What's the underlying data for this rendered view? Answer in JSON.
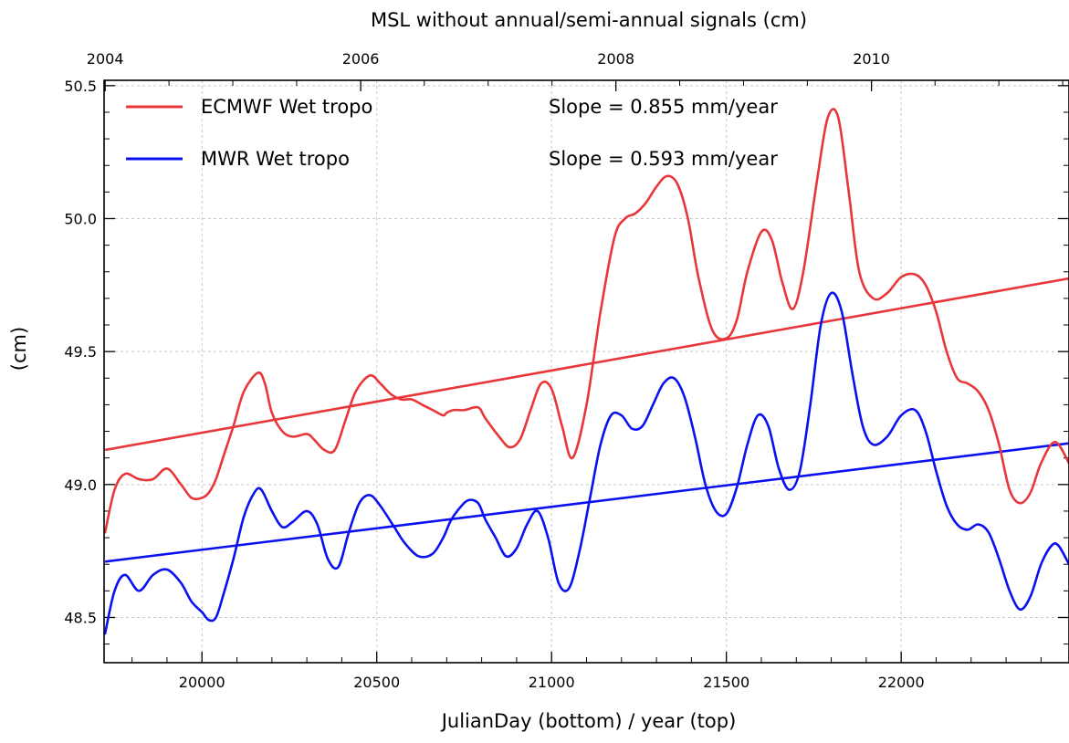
{
  "chart_data": {
    "type": "line",
    "title": "MSL without annual/semi-annual signals (cm)",
    "xlabel": "JulianDay (bottom) / year (top)",
    "ylabel": "(cm)",
    "xlim": [
      19720,
      22480
    ],
    "ylim": [
      48.33,
      50.52
    ],
    "grid": true,
    "legend_position": "top-left",
    "x_ticks": [
      20000,
      20500,
      21000,
      21500,
      22000
    ],
    "x_tick_labels": [
      "20000",
      "20500",
      "21000",
      "21500",
      "22000"
    ],
    "y_ticks": [
      48.5,
      49.0,
      49.5,
      50.0,
      50.5
    ],
    "y_tick_labels": [
      "48.5",
      "49.0",
      "49.5",
      "50.0",
      "50.5"
    ],
    "top_ticks": [
      19723,
      20454,
      21184,
      21915
    ],
    "top_tick_labels": [
      "2004",
      "2006",
      "2008",
      "2010"
    ],
    "series": [
      {
        "name": "ECMWF Wet tropo",
        "color": "#e8373a",
        "x": [
          19723,
          19750,
          19780,
          19820,
          19860,
          19900,
          19940,
          19970,
          20000,
          20020,
          20040,
          20060,
          20090,
          20120,
          20160,
          20180,
          20200,
          20230,
          20260,
          20300,
          20320,
          20350,
          20380,
          20410,
          20440,
          20480,
          20510,
          20540,
          20570,
          20600,
          20630,
          20660,
          20690,
          20700,
          20720,
          20750,
          20790,
          20810,
          20850,
          20880,
          20910,
          20940,
          20970,
          21000,
          21030,
          21060,
          21100,
          21140,
          21180,
          21210,
          21240,
          21270,
          21300,
          21330,
          21360,
          21390,
          21420,
          21460,
          21500,
          21530,
          21560,
          21600,
          21630,
          21660,
          21690,
          21720,
          21760,
          21790,
          21820,
          21850,
          21880,
          21920,
          21960,
          22000,
          22040,
          22070,
          22100,
          22130,
          22160,
          22190,
          22220,
          22250,
          22280,
          22310,
          22340,
          22370,
          22400,
          22440,
          22480
        ],
        "values": [
          48.82,
          48.98,
          49.04,
          49.02,
          49.02,
          49.06,
          49.0,
          48.95,
          48.95,
          48.97,
          49.02,
          49.1,
          49.22,
          49.35,
          49.42,
          49.38,
          49.27,
          49.2,
          49.18,
          49.19,
          49.17,
          49.13,
          49.13,
          49.24,
          49.35,
          49.41,
          49.38,
          49.34,
          49.32,
          49.32,
          49.3,
          49.28,
          49.26,
          49.27,
          49.28,
          49.28,
          49.29,
          49.25,
          49.18,
          49.14,
          49.17,
          49.28,
          49.38,
          49.36,
          49.22,
          49.1,
          49.3,
          49.65,
          49.93,
          50.0,
          50.02,
          50.06,
          50.12,
          50.16,
          50.13,
          50.0,
          49.78,
          49.58,
          49.55,
          49.62,
          49.8,
          49.95,
          49.92,
          49.76,
          49.66,
          49.8,
          50.15,
          50.38,
          50.38,
          50.1,
          49.8,
          49.7,
          49.72,
          49.78,
          49.79,
          49.75,
          49.65,
          49.5,
          49.4,
          49.38,
          49.35,
          49.28,
          49.15,
          48.98,
          48.93,
          48.97,
          49.08,
          49.16,
          49.08
        ]
      },
      {
        "name": "MWR Wet tropo",
        "color": "#0a10f0",
        "x": [
          19723,
          19750,
          19780,
          19820,
          19860,
          19900,
          19940,
          19970,
          20000,
          20020,
          20040,
          20060,
          20090,
          20120,
          20150,
          20170,
          20200,
          20230,
          20260,
          20300,
          20330,
          20360,
          20390,
          20420,
          20450,
          20480,
          20510,
          20550,
          20580,
          20620,
          20660,
          20690,
          20710,
          20730,
          20760,
          20790,
          20810,
          20840,
          20870,
          20900,
          20930,
          20960,
          20990,
          21020,
          21050,
          21080,
          21110,
          21140,
          21170,
          21200,
          21230,
          21260,
          21290,
          21320,
          21350,
          21380,
          21410,
          21440,
          21470,
          21500,
          21530,
          21560,
          21590,
          21620,
          21650,
          21680,
          21710,
          21740,
          21770,
          21800,
          21830,
          21860,
          21890,
          21920,
          21960,
          22000,
          22040,
          22070,
          22100,
          22130,
          22160,
          22190,
          22220,
          22250,
          22280,
          22310,
          22340,
          22370,
          22400,
          22430,
          22450,
          22480
        ],
        "values": [
          48.44,
          48.6,
          48.66,
          48.6,
          48.66,
          48.68,
          48.63,
          48.56,
          48.52,
          48.49,
          48.5,
          48.58,
          48.72,
          48.88,
          48.97,
          48.98,
          48.9,
          48.84,
          48.86,
          48.9,
          48.85,
          48.72,
          48.69,
          48.82,
          48.93,
          48.96,
          48.92,
          48.84,
          48.78,
          48.73,
          48.74,
          48.8,
          48.86,
          48.9,
          48.94,
          48.93,
          48.87,
          48.8,
          48.73,
          48.76,
          48.85,
          48.9,
          48.8,
          48.63,
          48.61,
          48.75,
          48.95,
          49.15,
          49.26,
          49.26,
          49.21,
          49.22,
          49.3,
          49.38,
          49.4,
          49.33,
          49.18,
          49.0,
          48.9,
          48.89,
          48.99,
          49.15,
          49.26,
          49.22,
          49.06,
          48.98,
          49.05,
          49.3,
          49.6,
          49.72,
          49.65,
          49.42,
          49.22,
          49.15,
          49.18,
          49.26,
          49.28,
          49.2,
          49.05,
          48.92,
          48.85,
          48.83,
          48.85,
          48.82,
          48.72,
          48.6,
          48.53,
          48.58,
          48.7,
          48.77,
          48.77,
          48.7
        ]
      }
    ],
    "trend_lines": [
      {
        "series": "ECMWF Wet tropo",
        "color": "#e8373a",
        "x": [
          19723,
          22480
        ],
        "values": [
          49.13,
          49.775
        ]
      },
      {
        "series": "MWR Wet tropo",
        "color": "#0a10f0",
        "x": [
          19723,
          22480
        ],
        "values": [
          48.71,
          49.155
        ]
      }
    ],
    "annotations": [
      "Slope = 0.855 mm/year",
      "Slope = 0.593 mm/year"
    ]
  }
}
